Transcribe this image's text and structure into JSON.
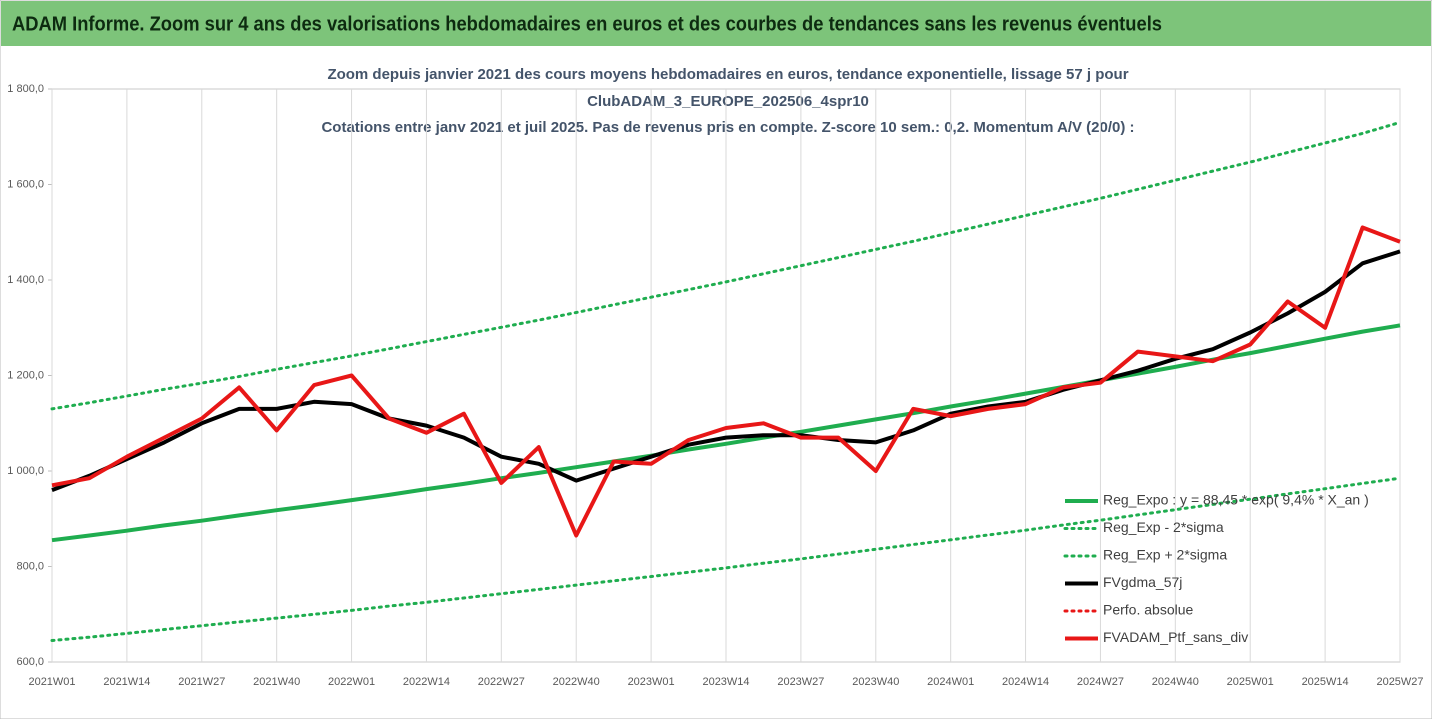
{
  "header": {
    "title": "ADAM Informe. Zoom sur 4 ans des valorisations hebdomadaires en euros et des courbes de tendances sans les revenus éventuels"
  },
  "chart_data": {
    "type": "line",
    "title": [
      "Zoom depuis janvier 2021 des cours moyens hebdomadaires  en euros, tendance exponentielle, lissage 57 j pour",
      "ClubADAM_3_EUROPE_202506_4spr10",
      "Cotations entre janv 2021 et juil 2025. Pas de revenus pris en compte. Z-score 10 sem.: 0,2. Momentum A/V (20/0) :"
    ],
    "categories": [
      "2021W01",
      null,
      "2021W14",
      null,
      "2021W27",
      null,
      "2021W40",
      null,
      "2022W01",
      null,
      "2022W14",
      null,
      "2022W27",
      null,
      "2022W40",
      null,
      "2023W01",
      null,
      "2023W14",
      null,
      "2023W27",
      null,
      "2023W40",
      null,
      "2024W01",
      null,
      "2024W14",
      null,
      "2024W27",
      null,
      "2024W40",
      null,
      "2025W01",
      null,
      "2025W14",
      null,
      "2025W27"
    ],
    "ylim": [
      600,
      1800
    ],
    "yticks": [
      {
        "value": 600,
        "label": "600,0"
      },
      {
        "value": 800,
        "label": "800,0"
      },
      {
        "value": 1000,
        "label": "1 000,0"
      },
      {
        "value": 1200,
        "label": "1 200,0"
      },
      {
        "value": 1400,
        "label": "1 400,0"
      },
      {
        "value": 1600,
        "label": "1 600,0"
      },
      {
        "value": 1800,
        "label": "1 800,0"
      }
    ],
    "grid": "x",
    "legend": "lower right",
    "series": [
      {
        "name": "Reg_Expo : y = 88,45 * exp( 9,4% *  X_an )",
        "color": "#1fad4f",
        "style": "solid",
        "values": [
          855,
          865,
          875,
          886,
          896,
          907,
          918,
          928,
          939,
          950,
          962,
          973,
          985,
          996,
          1008,
          1020,
          1032,
          1045,
          1057,
          1070,
          1082,
          1095,
          1108,
          1121,
          1135,
          1148,
          1162,
          1176,
          1190,
          1204,
          1218,
          1233,
          1247,
          1262,
          1277,
          1292,
          1305
        ]
      },
      {
        "name": "Reg_Exp - 2*sigma",
        "color": "#1fad4f",
        "style": "dotted",
        "values": [
          645,
          652,
          660,
          668,
          676,
          684,
          692,
          700,
          708,
          717,
          725,
          734,
          743,
          752,
          761,
          770,
          779,
          788,
          797,
          807,
          816,
          826,
          836,
          846,
          856,
          866,
          876,
          887,
          897,
          908,
          919,
          930,
          941,
          952,
          963,
          974,
          985
        ]
      },
      {
        "name": "Reg_Exp + 2*sigma",
        "color": "#1fad4f",
        "style": "dotted",
        "values": [
          1130,
          1143,
          1157,
          1171,
          1184,
          1198,
          1213,
          1227,
          1241,
          1256,
          1271,
          1286,
          1301,
          1316,
          1332,
          1348,
          1364,
          1380,
          1396,
          1413,
          1430,
          1447,
          1464,
          1481,
          1499,
          1517,
          1535,
          1553,
          1571,
          1590,
          1609,
          1628,
          1647,
          1667,
          1687,
          1707,
          1730
        ]
      },
      {
        "name": "FVgdma_57j",
        "color": "#000000",
        "style": "solid",
        "values": [
          960,
          990,
          1025,
          1060,
          1100,
          1130,
          1130,
          1145,
          1140,
          1110,
          1095,
          1070,
          1030,
          1015,
          980,
          1005,
          1030,
          1055,
          1070,
          1075,
          1075,
          1065,
          1060,
          1085,
          1120,
          1135,
          1145,
          1170,
          1190,
          1210,
          1235,
          1255,
          1290,
          1330,
          1375,
          1435,
          1460
        ]
      },
      {
        "name": "Perfo. absolue",
        "color": "#e81717",
        "style": "dotted",
        "values": [
          null,
          null,
          null,
          null,
          null,
          null,
          null,
          null,
          null,
          null,
          null,
          null,
          null,
          null,
          null,
          null,
          null,
          null,
          null,
          null,
          null,
          null,
          null,
          null,
          null,
          null,
          null,
          null,
          null,
          null,
          null,
          null,
          null,
          null,
          null,
          null,
          null
        ]
      },
      {
        "name": "FVADAM_Ptf_sans_div",
        "color": "#e81717",
        "style": "solid",
        "values": [
          970,
          985,
          1030,
          1070,
          1110,
          1175,
          1085,
          1180,
          1200,
          1110,
          1080,
          1120,
          975,
          1050,
          865,
          1020,
          1015,
          1065,
          1090,
          1100,
          1070,
          1070,
          1000,
          1130,
          1115,
          1130,
          1140,
          1175,
          1185,
          1250,
          1240,
          1230,
          1265,
          1355,
          1300,
          1510,
          1480
        ]
      }
    ]
  }
}
